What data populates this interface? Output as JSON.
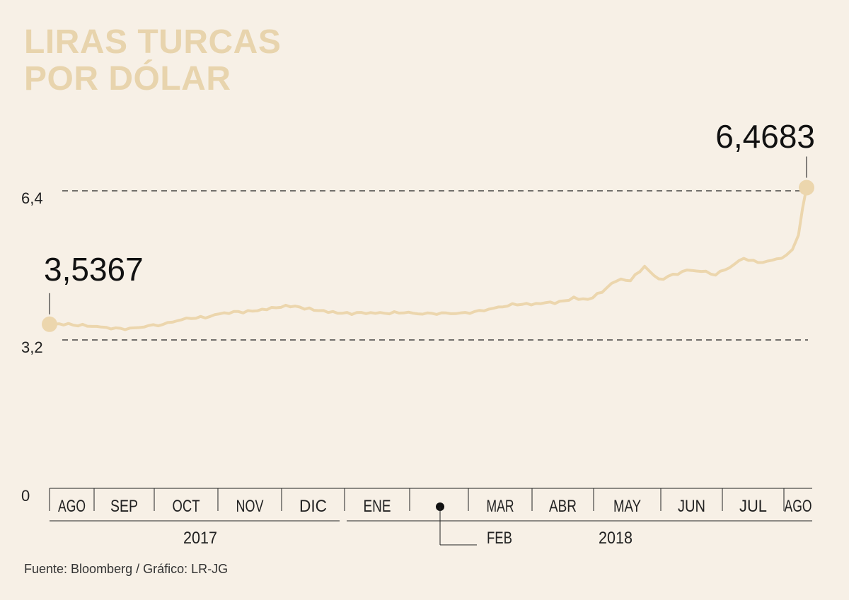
{
  "title_lines": [
    "LIRAS TURCAS",
    "POR DÓLAR"
  ],
  "source": "Fuente: Bloomberg / Gráfico: LR-JG",
  "colors": {
    "line": "#ecd6ad",
    "text": "#111111",
    "background": "#f7f0e6",
    "title": "#e8d4ad"
  },
  "chart_data": {
    "type": "line",
    "title": "LIRAS TURCAS POR DÓLAR",
    "xlabel": "",
    "ylabel": "",
    "y_ticks": [
      {
        "value": 0,
        "label": "0"
      },
      {
        "value": 3.2,
        "label": "3,2"
      },
      {
        "value": 6.4,
        "label": "6,4"
      }
    ],
    "gridlines": [
      3.2,
      6.4
    ],
    "months": [
      {
        "label": "AGO"
      },
      {
        "label": "SEP"
      },
      {
        "label": "OCT"
      },
      {
        "label": "NOV"
      },
      {
        "label": "DIC"
      },
      {
        "label": "ENE"
      },
      {
        "label": "",
        "callout": "FEB"
      },
      {
        "label": "MAR"
      },
      {
        "label": "ABR"
      },
      {
        "label": "MAY"
      },
      {
        "label": "JUN"
      },
      {
        "label": "JUL"
      },
      {
        "label": "AGO"
      }
    ],
    "years": [
      "2017",
      "2018"
    ],
    "annotations": [
      {
        "label": "3,5367",
        "value": 3.5367,
        "position": "start"
      },
      {
        "label": "6,4683",
        "value": 6.4683,
        "position": "end"
      }
    ],
    "series": [
      {
        "x": [
          "2017-08-01",
          "2017-08-08",
          "2017-08-15",
          "2017-08-22",
          "2017-08-29",
          "2017-09-05",
          "2017-09-12",
          "2017-09-19",
          "2017-09-26",
          "2017-10-03",
          "2017-10-10",
          "2017-10-17",
          "2017-10-24",
          "2017-10-31",
          "2017-11-07",
          "2017-11-14",
          "2017-11-21",
          "2017-11-28",
          "2017-12-05",
          "2017-12-12",
          "2017-12-19",
          "2017-12-26",
          "2018-01-02",
          "2018-01-09",
          "2018-01-16",
          "2018-01-23",
          "2018-01-30",
          "2018-02-06",
          "2018-02-13",
          "2018-02-20",
          "2018-02-27",
          "2018-03-06",
          "2018-03-13",
          "2018-03-20",
          "2018-03-27",
          "2018-04-03",
          "2018-04-10",
          "2018-04-17",
          "2018-04-24",
          "2018-05-01",
          "2018-05-08",
          "2018-05-15",
          "2018-05-22",
          "2018-05-29",
          "2018-06-05",
          "2018-06-12",
          "2018-06-19",
          "2018-06-26",
          "2018-07-03",
          "2018-07-10",
          "2018-07-17",
          "2018-07-24",
          "2018-07-31",
          "2018-08-03",
          "2018-08-06",
          "2018-08-08",
          "2018-08-10"
        ],
        "values": [
          3.54,
          3.52,
          3.5,
          3.49,
          3.47,
          3.45,
          3.46,
          3.51,
          3.53,
          3.61,
          3.66,
          3.67,
          3.76,
          3.81,
          3.83,
          3.86,
          3.89,
          3.91,
          3.86,
          3.83,
          3.81,
          3.79,
          3.79,
          3.77,
          3.76,
          3.78,
          3.76,
          3.77,
          3.78,
          3.78,
          3.81,
          3.86,
          3.91,
          3.95,
          3.95,
          4.0,
          4.03,
          4.12,
          4.07,
          4.22,
          4.46,
          4.47,
          4.78,
          4.51,
          4.61,
          4.7,
          4.67,
          4.59,
          4.75,
          4.95,
          4.86,
          4.91,
          5.02,
          5.14,
          5.45,
          6.02,
          6.4683
        ]
      }
    ]
  }
}
